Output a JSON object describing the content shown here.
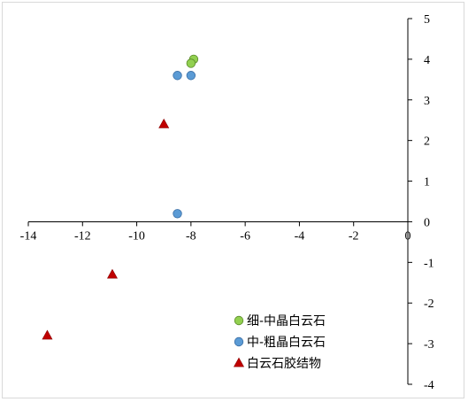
{
  "chart_data": {
    "type": "scatter",
    "xlim": [
      -14,
      0
    ],
    "ylim": [
      -4,
      5
    ],
    "x_ticks": [
      -14,
      -12,
      -10,
      -8,
      -6,
      -4,
      -2,
      0
    ],
    "y_ticks": [
      5,
      4,
      3,
      2,
      1,
      0,
      -1,
      -2,
      -3,
      -4
    ],
    "x_tick_labels": [
      "-14",
      "-12",
      "-10",
      "-8",
      "-6",
      "-4",
      "-2",
      "0"
    ],
    "y_tick_labels": [
      "5",
      "4",
      "3",
      "2",
      "1",
      "0",
      "-1",
      "-2",
      "-3",
      "-4"
    ],
    "grid": false,
    "legend_position": "bottom-right",
    "series": [
      {
        "name": "细-中晶白云石",
        "marker": "circle",
        "color": "#92d050",
        "points": [
          {
            "x": -7.9,
            "y": 4.0
          },
          {
            "x": -8.0,
            "y": 3.9
          }
        ]
      },
      {
        "name": "中-粗晶白云石",
        "marker": "circle",
        "color": "#5b9bd5",
        "points": [
          {
            "x": -8.5,
            "y": 3.6
          },
          {
            "x": -8.0,
            "y": 3.6
          },
          {
            "x": -8.5,
            "y": 0.2
          }
        ]
      },
      {
        "name": "白云石胶结物",
        "marker": "triangle",
        "color": "#c00000",
        "points": [
          {
            "x": -9.0,
            "y": 2.4
          },
          {
            "x": -10.9,
            "y": -1.3
          },
          {
            "x": -13.3,
            "y": -2.8
          }
        ]
      }
    ]
  }
}
